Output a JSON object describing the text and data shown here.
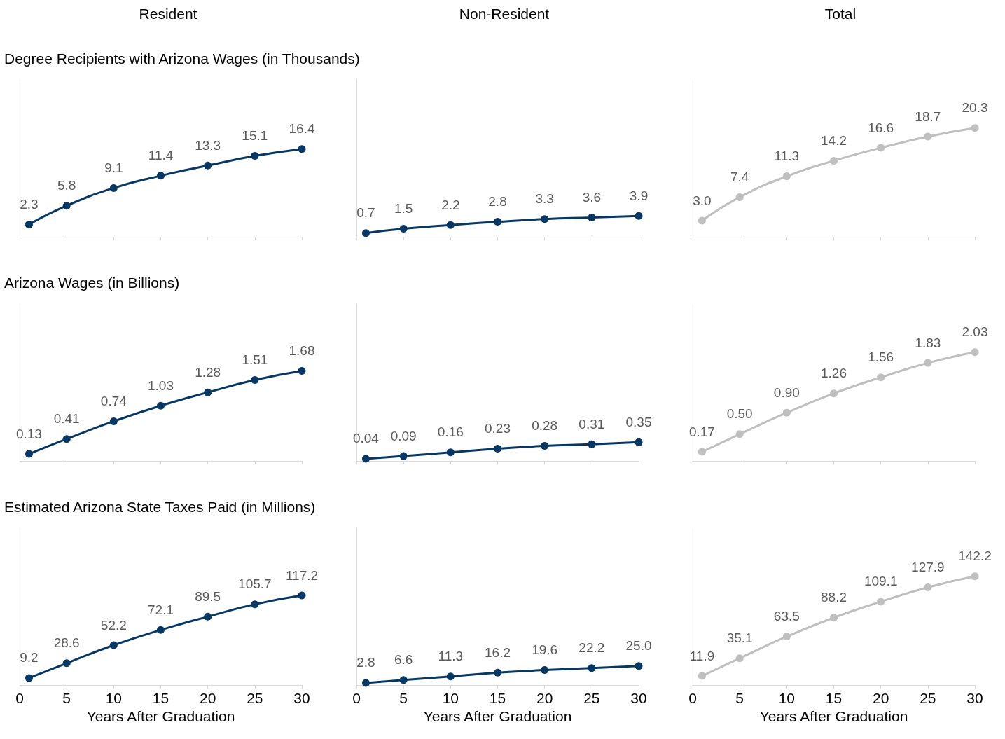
{
  "chart_data": [
    {
      "type": "line",
      "title": "Resident",
      "subtitle": "Degree Recipients with Arizona Wages (in Thousands)",
      "x": [
        1,
        5,
        10,
        15,
        20,
        25,
        30
      ],
      "xlim": [
        0,
        30
      ],
      "xticks": [
        0,
        5,
        10,
        15,
        20,
        25,
        30
      ],
      "tick_labels": false,
      "marker": "circle",
      "series": [
        {
          "color": "#073763",
          "values": [
            2.3,
            5.8,
            9.1,
            11.4,
            13.3,
            15.1,
            16.4
          ],
          "value_labels": [
            "2.3",
            "5.8",
            "9.1",
            "11.4",
            "13.3",
            "15.1",
            "16.4"
          ]
        }
      ]
    },
    {
      "type": "line",
      "title": "Non-Resident",
      "x": [
        1,
        5,
        10,
        15,
        20,
        25,
        30
      ],
      "xlim": [
        0,
        30
      ],
      "xticks": [
        0,
        5,
        10,
        15,
        20,
        25,
        30
      ],
      "tick_labels": false,
      "marker": "circle",
      "series": [
        {
          "color": "#073763",
          "values": [
            0.7,
            1.5,
            2.2,
            2.8,
            3.3,
            3.6,
            3.9
          ],
          "value_labels": [
            "0.7",
            "1.5",
            "2.2",
            "2.8",
            "3.3",
            "3.6",
            "3.9"
          ]
        }
      ]
    },
    {
      "type": "line",
      "title": "Total",
      "x": [
        1,
        5,
        10,
        15,
        20,
        25,
        30
      ],
      "xlim": [
        0,
        30
      ],
      "xticks": [
        0,
        5,
        10,
        15,
        20,
        25,
        30
      ],
      "tick_labels": false,
      "marker": "circle",
      "series": [
        {
          "color": "#bfbfbf",
          "values": [
            3.0,
            7.4,
            11.3,
            14.2,
            16.6,
            18.7,
            20.3
          ],
          "value_labels": [
            "3.0",
            "7.4",
            "11.3",
            "14.2",
            "16.6",
            "18.7",
            "20.3"
          ]
        }
      ]
    },
    {
      "type": "line",
      "subtitle": "Arizona Wages (in Billions)",
      "x": [
        1,
        5,
        10,
        15,
        20,
        25,
        30
      ],
      "xlim": [
        0,
        30
      ],
      "xticks": [
        0,
        5,
        10,
        15,
        20,
        25,
        30
      ],
      "tick_labels": false,
      "marker": "circle",
      "series": [
        {
          "color": "#073763",
          "values": [
            0.13,
            0.41,
            0.74,
            1.03,
            1.28,
            1.51,
            1.68
          ],
          "value_labels": [
            "0.13",
            "0.41",
            "0.74",
            "1.03",
            "1.28",
            "1.51",
            "1.68"
          ]
        }
      ]
    },
    {
      "type": "line",
      "x": [
        1,
        5,
        10,
        15,
        20,
        25,
        30
      ],
      "xlim": [
        0,
        30
      ],
      "xticks": [
        0,
        5,
        10,
        15,
        20,
        25,
        30
      ],
      "tick_labels": false,
      "marker": "circle",
      "series": [
        {
          "color": "#073763",
          "values": [
            0.04,
            0.09,
            0.16,
            0.23,
            0.28,
            0.31,
            0.35
          ],
          "value_labels": [
            "0.04",
            "0.09",
            "0.16",
            "0.23",
            "0.28",
            "0.31",
            "0.35"
          ]
        }
      ]
    },
    {
      "type": "line",
      "x": [
        1,
        5,
        10,
        15,
        20,
        25,
        30
      ],
      "xlim": [
        0,
        30
      ],
      "xticks": [
        0,
        5,
        10,
        15,
        20,
        25,
        30
      ],
      "tick_labels": false,
      "marker": "circle",
      "series": [
        {
          "color": "#bfbfbf",
          "values": [
            0.17,
            0.5,
            0.9,
            1.26,
            1.56,
            1.83,
            2.03
          ],
          "value_labels": [
            "0.17",
            "0.50",
            "0.90",
            "1.26",
            "1.56",
            "1.83",
            "2.03"
          ]
        }
      ]
    },
    {
      "type": "line",
      "subtitle": "Estimated Arizona State Taxes Paid (in Millions)",
      "xlabel": "Years After Graduation",
      "x": [
        1,
        5,
        10,
        15,
        20,
        25,
        30
      ],
      "xlim": [
        0,
        30
      ],
      "xticks": [
        0,
        5,
        10,
        15,
        20,
        25,
        30
      ],
      "tick_labels": "x",
      "marker": "circle",
      "series": [
        {
          "color": "#073763",
          "values": [
            9.2,
            28.6,
            52.2,
            72.1,
            89.5,
            105.7,
            117.2
          ],
          "value_labels": [
            "9.2",
            "28.6",
            "52.2",
            "72.1",
            "89.5",
            "105.7",
            "117.2"
          ]
        }
      ]
    },
    {
      "type": "line",
      "xlabel": "Years After Graduation",
      "x": [
        1,
        5,
        10,
        15,
        20,
        25,
        30
      ],
      "xlim": [
        0,
        30
      ],
      "xticks": [
        0,
        5,
        10,
        15,
        20,
        25,
        30
      ],
      "tick_labels": "x",
      "marker": "circle",
      "series": [
        {
          "color": "#073763",
          "values": [
            2.8,
            6.6,
            11.3,
            16.2,
            19.6,
            22.2,
            25.0
          ],
          "value_labels": [
            "2.8",
            "6.6",
            "11.3",
            "16.2",
            "19.6",
            "22.2",
            "25.0"
          ]
        }
      ]
    },
    {
      "type": "line",
      "xlabel": "Years After Graduation",
      "x": [
        1,
        5,
        10,
        15,
        20,
        25,
        30
      ],
      "xlim": [
        0,
        30
      ],
      "xticks": [
        0,
        5,
        10,
        15,
        20,
        25,
        30
      ],
      "tick_labels": "x",
      "marker": "circle",
      "series": [
        {
          "color": "#bfbfbf",
          "values": [
            11.9,
            35.1,
            63.5,
            88.2,
            109.1,
            127.9,
            142.2
          ],
          "value_labels": [
            "11.9",
            "35.1",
            "63.5",
            "88.2",
            "109.1",
            "127.9",
            "142.2"
          ]
        }
      ]
    }
  ]
}
